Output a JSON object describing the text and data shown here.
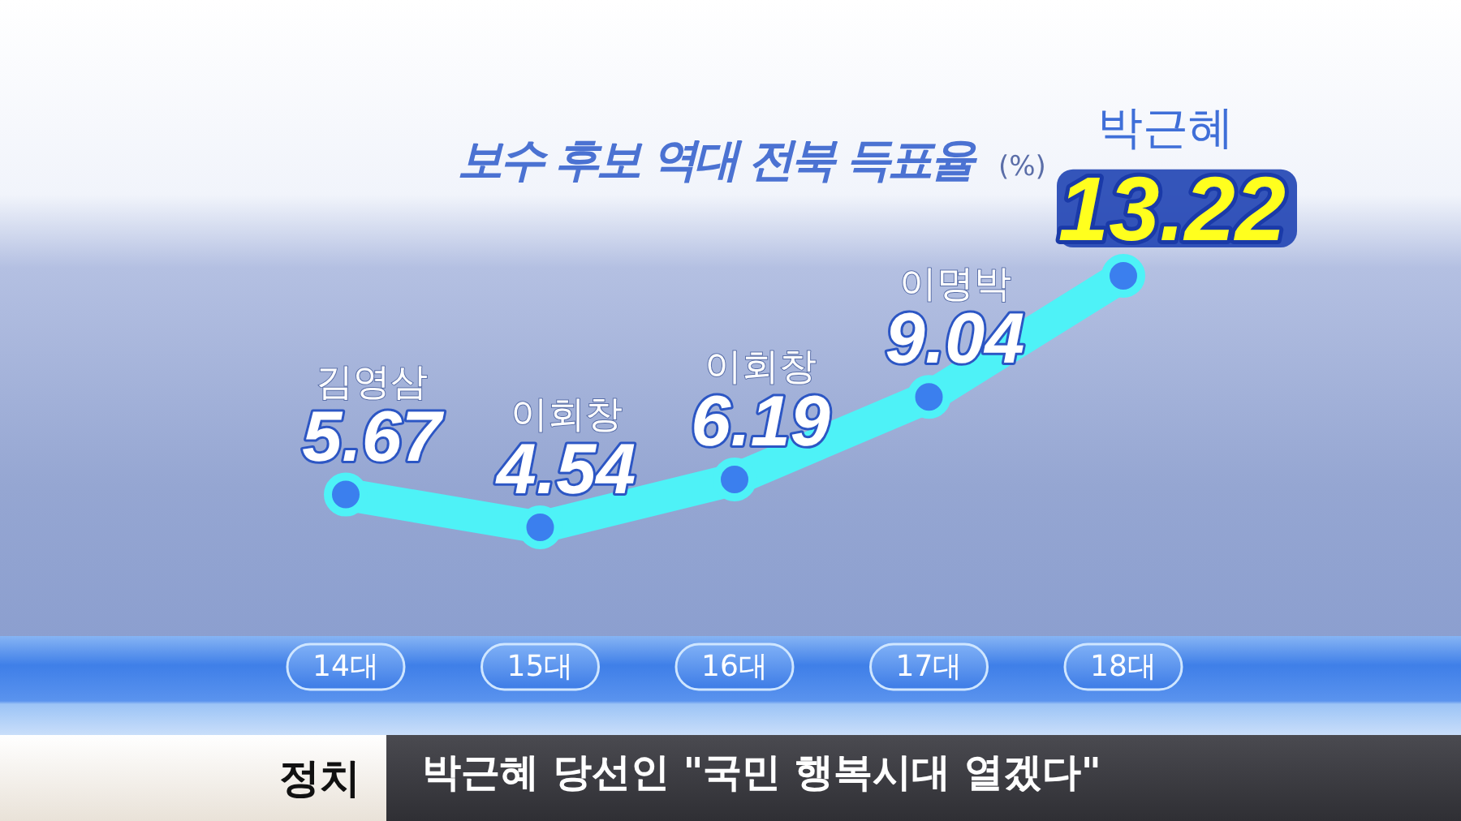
{
  "chart_data": {
    "type": "line",
    "title": "보수 후보 역대 전북 득표율",
    "ylabel": "(%)",
    "categories": [
      "14대",
      "15대",
      "16대",
      "17대",
      "18대"
    ],
    "series": [
      {
        "color": "#4ef2f7",
        "values": [
          5.67,
          4.54,
          6.19,
          9.04,
          13.22
        ]
      }
    ],
    "tick_labels": "x",
    "data_labels": true,
    "marker": "circle",
    "line_style": "solid",
    "annotations": [
      {
        "text": "김영삼",
        "x": "14대",
        "y": 5.67
      },
      {
        "text": "이회창",
        "x": "15대",
        "y": 4.54
      },
      {
        "text": "이회창",
        "x": "16대",
        "y": 6.19
      },
      {
        "text": "이명박",
        "x": "17대",
        "y": 9.04
      },
      {
        "text": "박근혜",
        "x": "18대",
        "y": 13.22
      },
      "정치",
      "박근혜 당선인 \"국민 행복시대 열겠다\""
    ]
  }
}
